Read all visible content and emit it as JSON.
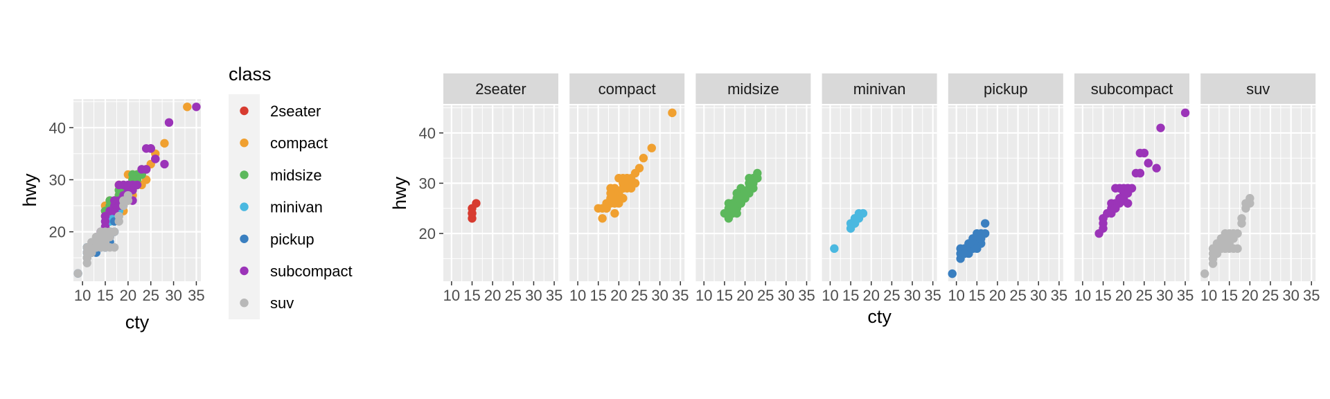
{
  "chart_data": [
    {
      "type": "scatter",
      "xlabel": "cty",
      "ylabel": "hwy",
      "xlim": [
        8,
        36
      ],
      "ylim": [
        10.5,
        45.5
      ],
      "x_ticks": [
        10,
        15,
        20,
        25,
        30,
        35
      ],
      "y_ticks": [
        20,
        30,
        40
      ],
      "grid": true,
      "legend": {
        "title": "class",
        "placement": "right",
        "entries": [
          "2seater",
          "compact",
          "midsize",
          "minivan",
          "pickup",
          "subcompact",
          "suv"
        ]
      },
      "series_colors": {
        "2seater": "#d73b30",
        "compact": "#f0a030",
        "midsize": "#5cb85c",
        "minivan": "#4ab8e0",
        "pickup": "#3a7fc0",
        "subcompact": "#9b34b8",
        "suv": "#b8b8b8"
      },
      "series": [
        {
          "name": "2seater",
          "x": [
            15,
            15,
            15,
            16,
            15
          ],
          "y": [
            23,
            24,
            25,
            26,
            24
          ]
        },
        {
          "name": "compact",
          "x": [
            18,
            21,
            20,
            21,
            18,
            16,
            18,
            19,
            22,
            22,
            19,
            20,
            21,
            21,
            24,
            25,
            26,
            28,
            33,
            21,
            22,
            19,
            21,
            17,
            16,
            19,
            20,
            22,
            17,
            19,
            18,
            21,
            18,
            21,
            20,
            17,
            15,
            24,
            22,
            23,
            20,
            19,
            23
          ],
          "y": [
            29,
            29,
            31,
            30,
            26,
            25,
            27,
            26,
            31,
            30,
            28,
            28,
            27,
            29,
            32,
            33,
            35,
            37,
            44,
            29,
            31,
            29,
            27,
            25,
            23,
            24,
            26,
            30,
            25,
            26,
            27,
            29,
            28,
            31,
            27,
            26,
            25,
            30,
            29,
            31,
            28,
            27,
            29
          ]
        },
        {
          "name": "midsize",
          "x": [
            17,
            18,
            16,
            20,
            19,
            15,
            17,
            17,
            18,
            21,
            19,
            22,
            18,
            16,
            17,
            21,
            19,
            23,
            23,
            18,
            19,
            22,
            20,
            17,
            18,
            21,
            19,
            16,
            18,
            19,
            18,
            19,
            21,
            21,
            22,
            23,
            20,
            17,
            18,
            19,
            21
          ],
          "y": [
            26,
            25,
            26,
            27,
            26,
            24,
            26,
            25,
            26,
            29,
            27,
            31,
            26,
            23,
            24,
            28,
            27,
            31,
            32,
            25,
            26,
            30,
            27,
            26,
            24,
            29,
            28,
            25,
            27,
            29,
            28,
            27,
            30,
            31,
            29,
            31,
            28,
            25,
            26,
            26,
            30
          ]
        },
        {
          "name": "minivan",
          "x": [
            16,
            16,
            17,
            18,
            11,
            15,
            15,
            16,
            17,
            18,
            16
          ],
          "y": [
            22,
            22,
            23,
            24,
            17,
            21,
            22,
            23,
            24,
            24,
            23
          ]
        },
        {
          "name": "pickup",
          "x": [
            13,
            14,
            15,
            9,
            11,
            12,
            13,
            14,
            15,
            16,
            17,
            11,
            12,
            13,
            14,
            15,
            16,
            17,
            11,
            12,
            13,
            14,
            15,
            16,
            11,
            12,
            13,
            14,
            15,
            16,
            13,
            14,
            15
          ],
          "y": [
            17,
            17,
            18,
            12,
            15,
            16,
            16,
            17,
            17,
            18,
            22,
            16,
            17,
            17,
            18,
            19,
            20,
            20,
            17,
            17,
            17,
            18,
            19,
            20,
            16,
            16,
            18,
            19,
            20,
            19,
            18,
            18,
            17
          ]
        },
        {
          "name": "subcompact",
          "x": [
            18,
            21,
            20,
            21,
            18,
            24,
            25,
            26,
            28,
            29,
            35,
            15,
            15,
            16,
            17,
            17,
            18,
            18,
            19,
            19,
            20,
            20,
            21,
            21,
            22,
            23,
            24,
            24,
            25,
            26,
            17,
            18,
            19,
            20,
            21,
            14,
            15,
            15,
            16
          ],
          "y": [
            26,
            29,
            28,
            26,
            25,
            32,
            36,
            34,
            33,
            41,
            44,
            23,
            22,
            24,
            25,
            26,
            26,
            29,
            27,
            29,
            28,
            29,
            28,
            26,
            29,
            32,
            36,
            32,
            36,
            34,
            24,
            25,
            26,
            27,
            29,
            20,
            21,
            23,
            24
          ]
        },
        {
          "name": "suv",
          "x": [
            9,
            11,
            11,
            11,
            11,
            12,
            12,
            12,
            13,
            13,
            13,
            13,
            14,
            14,
            14,
            14,
            14,
            15,
            15,
            15,
            15,
            16,
            16,
            16,
            17,
            17,
            18,
            18,
            19,
            19,
            20,
            20,
            12,
            13,
            11
          ],
          "y": [
            12,
            14,
            15,
            16,
            17,
            17,
            16,
            18,
            17,
            19,
            18,
            17,
            17,
            18,
            19,
            20,
            17,
            17,
            18,
            19,
            20,
            20,
            19,
            17,
            20,
            17,
            22,
            23,
            25,
            26,
            26,
            27,
            16,
            17,
            15
          ]
        }
      ]
    },
    {
      "type": "scatter",
      "facet_by": "class",
      "xlabel": "cty",
      "ylabel": "hwy",
      "xlim": [
        8,
        36
      ],
      "ylim": [
        10.5,
        45.5
      ],
      "x_ticks": [
        10,
        15,
        20,
        25,
        30,
        35
      ],
      "y_ticks": [
        20,
        30,
        40
      ],
      "grid": true,
      "panels": [
        "2seater",
        "compact",
        "midsize",
        "minivan",
        "pickup",
        "subcompact",
        "suv"
      ]
    }
  ]
}
